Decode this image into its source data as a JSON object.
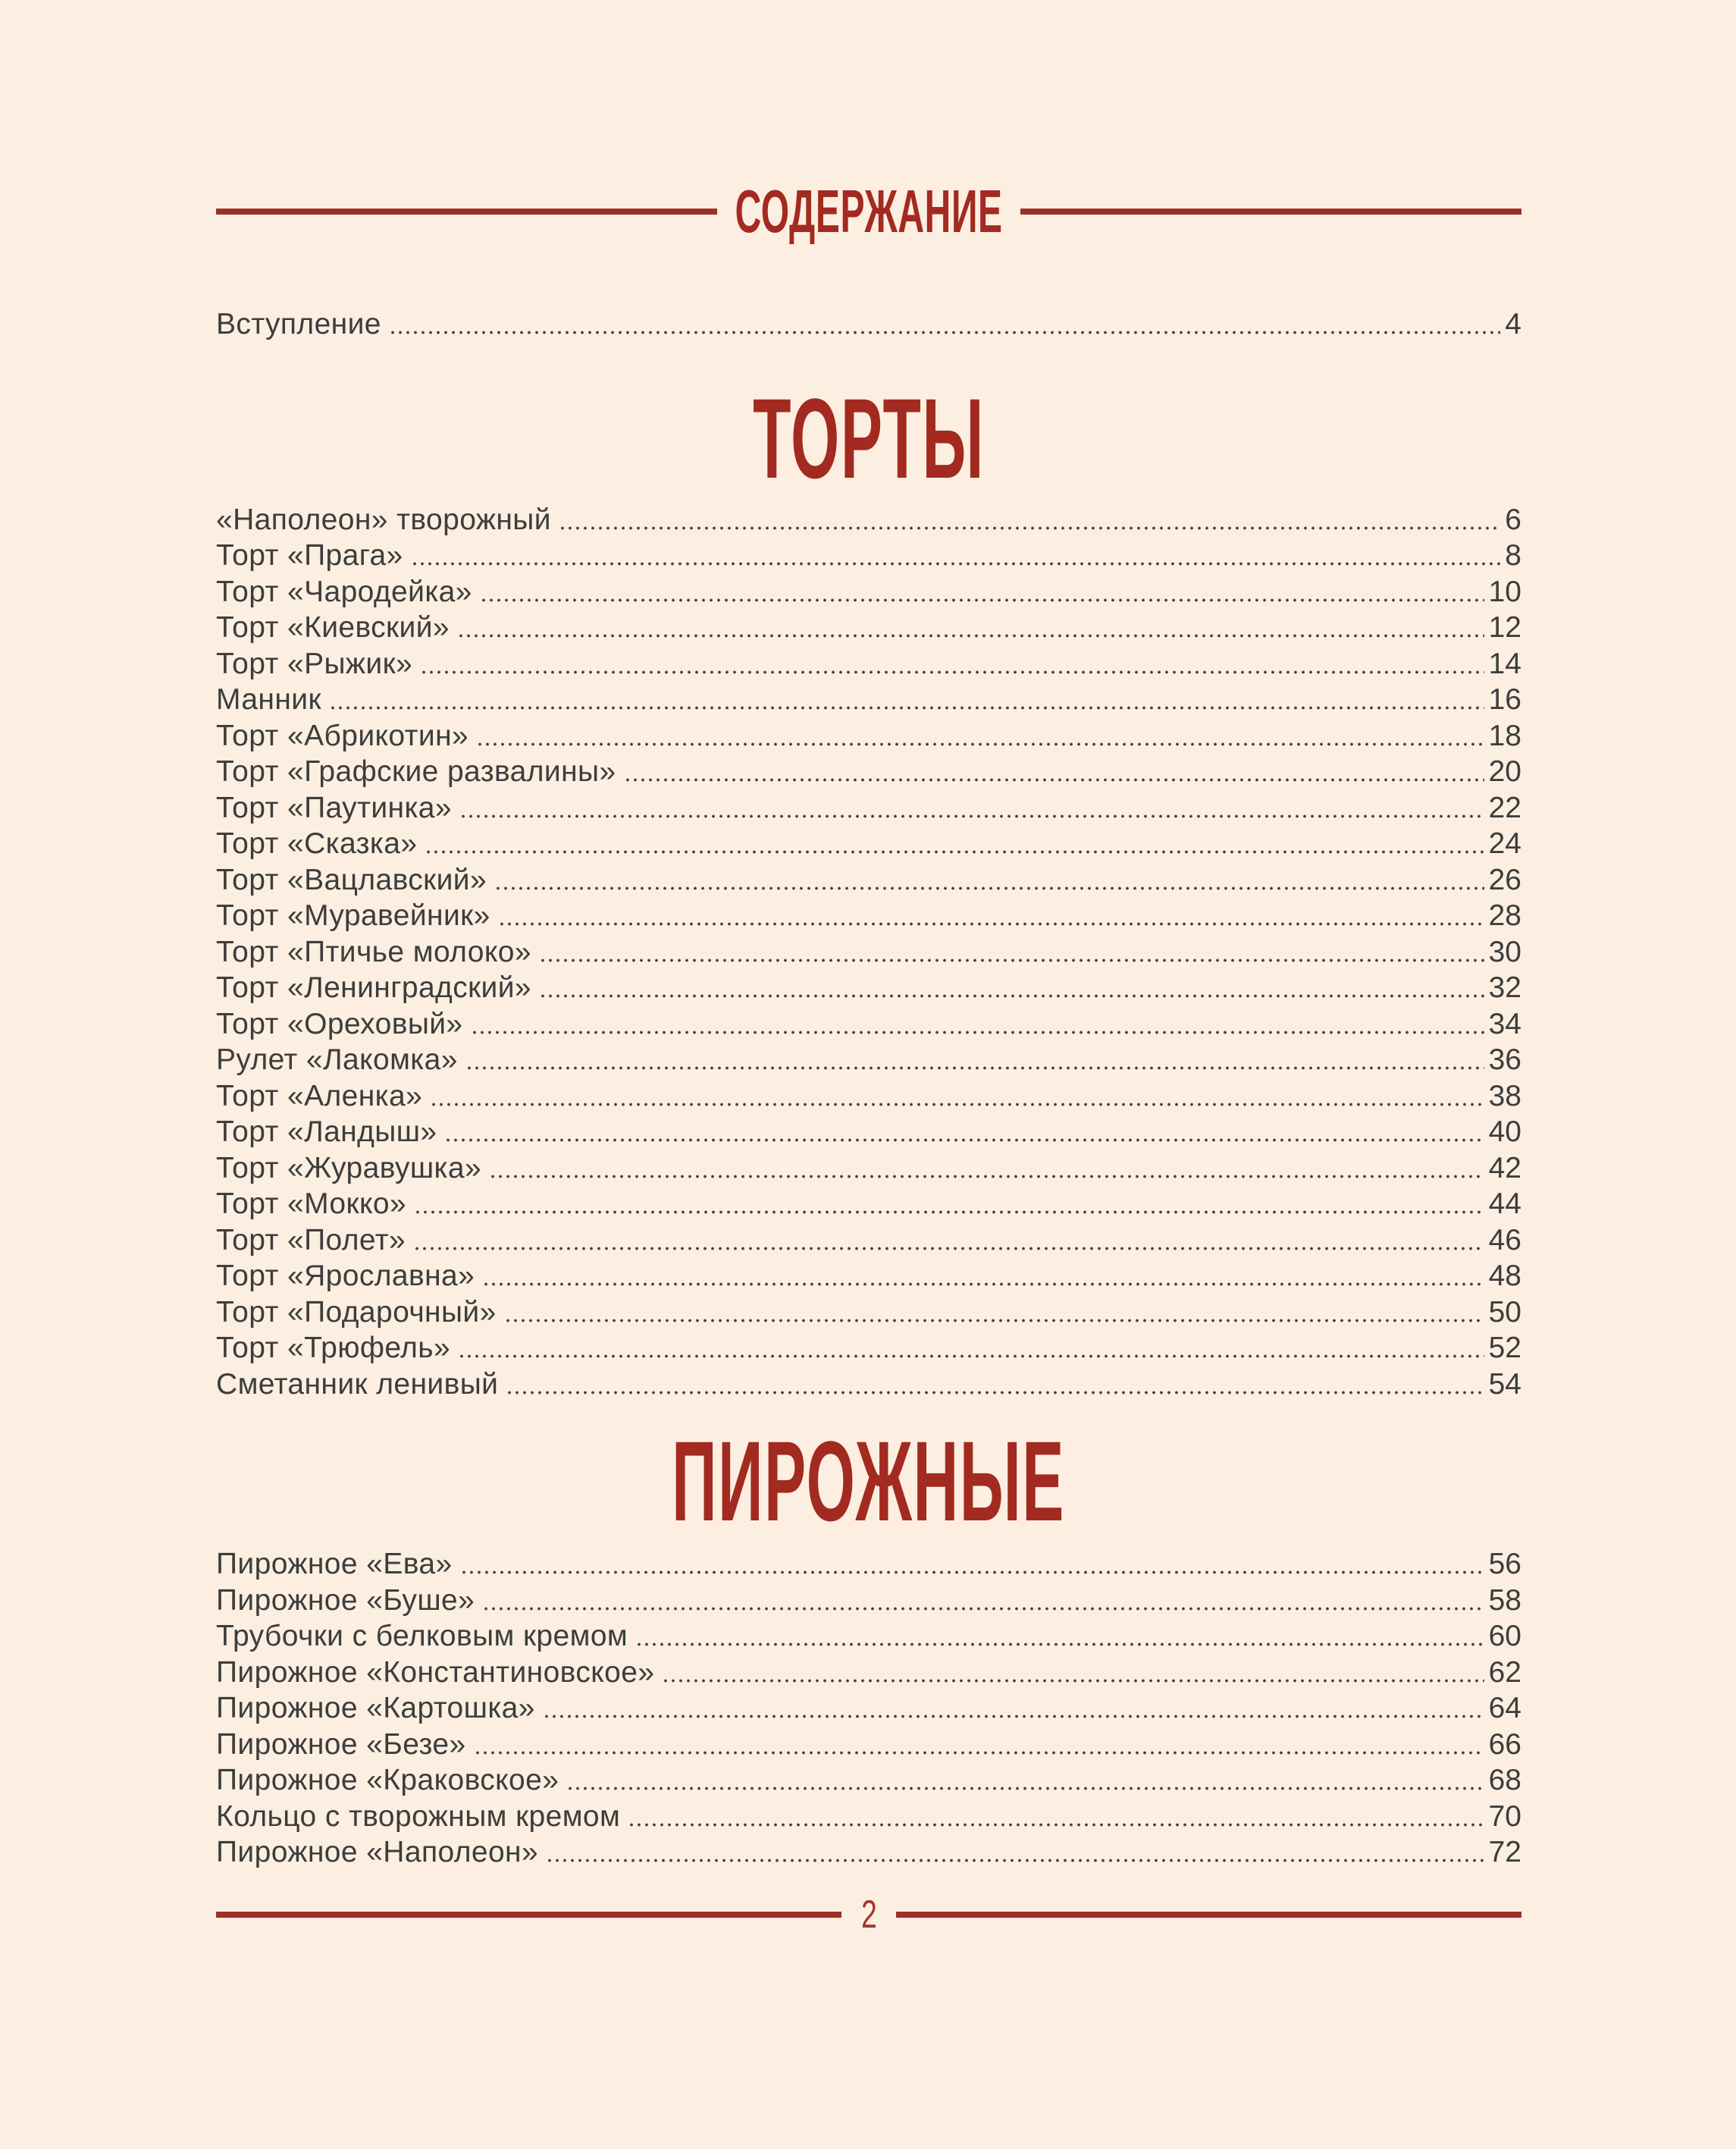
{
  "page": {
    "header": {
      "title": "СОДЕРЖАНИЕ"
    },
    "intro": {
      "label": "Вступление",
      "page": "4"
    },
    "sections": [
      {
        "title": "ТОРТЫ",
        "entries": [
          {
            "label": "«Наполеон» творожный",
            "page": "6"
          },
          {
            "label": "Торт «Прага»",
            "page": "8"
          },
          {
            "label": "Торт «Чародейка»",
            "page": "10"
          },
          {
            "label": "Торт «Киевский»",
            "page": "12"
          },
          {
            "label": "Торт «Рыжик»",
            "page": "14"
          },
          {
            "label": "Манник",
            "page": "16"
          },
          {
            "label": "Торт «Абрикотин»",
            "page": "18"
          },
          {
            "label": "Торт «Графские развалины»",
            "page": "20"
          },
          {
            "label": "Торт «Паутинка»",
            "page": "22"
          },
          {
            "label": "Торт «Сказка»",
            "page": "24"
          },
          {
            "label": "Торт «Вацлавский»",
            "page": "26"
          },
          {
            "label": "Торт «Муравейник»",
            "page": "28"
          },
          {
            "label": "Торт «Птичье молоко»",
            "page": "30"
          },
          {
            "label": "Торт «Ленинградский»",
            "page": "32"
          },
          {
            "label": "Торт «Ореховый»",
            "page": "34"
          },
          {
            "label": "Рулет «Лакомка»",
            "page": "36"
          },
          {
            "label": "Торт «Аленка»",
            "page": "38"
          },
          {
            "label": "Торт «Ландыш»",
            "page": "40"
          },
          {
            "label": "Торт «Журавушка»",
            "page": "42"
          },
          {
            "label": "Торт «Мокко»",
            "page": "44"
          },
          {
            "label": "Торт «Полет»",
            "page": "46"
          },
          {
            "label": "Торт «Ярославна»",
            "page": "48"
          },
          {
            "label": "Торт «Подарочный»",
            "page": "50"
          },
          {
            "label": "Торт «Трюфель»",
            "page": "52"
          },
          {
            "label": "Сметанник ленивый",
            "page": "54"
          }
        ]
      },
      {
        "title": "ПИРОЖНЫЕ",
        "entries": [
          {
            "label": "Пирожное «Ева»",
            "page": "56"
          },
          {
            "label": "Пирожное «Буше»",
            "page": "58"
          },
          {
            "label": "Трубочки с белковым кремом",
            "page": "60"
          },
          {
            "label": "Пирожное «Константиновское»",
            "page": "62"
          },
          {
            "label": "Пирожное «Картошка»",
            "page": "64"
          },
          {
            "label": "Пирожное «Безе»",
            "page": "66"
          },
          {
            "label": "Пирожное «Краковское»",
            "page": "68"
          },
          {
            "label": "Кольцо с творожным кремом",
            "page": "70"
          },
          {
            "label": "Пирожное «Наполеон»",
            "page": "72"
          }
        ]
      }
    ],
    "footer": {
      "page_number": "2"
    },
    "colors": {
      "background": "#fcefe1",
      "accent_red": "#a32a20",
      "rule_red": "#9e2f27",
      "text": "#3d3d3d"
    }
  }
}
